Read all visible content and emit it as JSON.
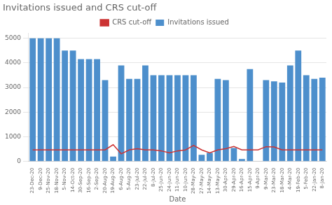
{
  "chart_data": {
    "type": "bar",
    "title": "Invitations issued and CRS cut-off",
    "x_label": "Date",
    "categories": [
      "23-Dec-20",
      "9-Dec-20",
      "25-Nov-20",
      "18-Nov-20",
      "5-Nov-20",
      "14-Oct-20",
      "30-Sep-20",
      "16-Sep-20",
      "2-Sep-20",
      "20-Aug-20",
      "19-Aug-20",
      "6-Aug-20",
      "5-Aug-20",
      "23-Jul-20",
      "22-Jul-20",
      "8-Jul-20",
      "25-Jun-20",
      "24-Jun-20",
      "11-Jun-20",
      "10-Jun-20",
      "28-May-20",
      "27-May-20",
      "14-May-20",
      "13-May-20",
      "30-Apr-20",
      "29-Apr-20",
      "16-Apr-20",
      "15-Apr-20",
      "9-Apr-20",
      "9-Mar-20",
      "23-Mar-20",
      "18-Mar-20",
      "4-Mar-20",
      "19-Feb-20",
      "5-Feb-20",
      "22-Jan-20",
      "8-Jan-20"
    ],
    "series": [
      {
        "name": "Invitations issued",
        "type": "bar",
        "color": "#4d8fcc",
        "values": [
          5000,
          5000,
          5000,
          5000,
          4500,
          4500,
          4150,
          4150,
          4150,
          3300,
          200,
          3900,
          3350,
          3350,
          3900,
          3500,
          3500,
          3500,
          3500,
          3500,
          3500,
          270,
          350,
          3350,
          3300,
          550,
          100,
          3750,
          0,
          3300,
          3250,
          3200,
          3900,
          4500,
          3500,
          3350,
          3400
        ]
      },
      {
        "name": "CRS cut-off",
        "type": "line",
        "color": "#cc3333",
        "values": [
          470,
          470,
          470,
          470,
          470,
          470,
          470,
          470,
          470,
          470,
          680,
          310,
          470,
          520,
          470,
          470,
          430,
          350,
          430,
          470,
          650,
          470,
          350,
          470,
          520,
          610,
          470,
          470,
          470,
          600,
          590,
          470,
          470,
          470,
          470,
          470,
          470
        ]
      }
    ],
    "ylim": [
      0,
      5200
    ],
    "yticks": [
      0,
      1000,
      2000,
      3000,
      4000,
      5000
    ],
    "grid": true,
    "legend": "top"
  }
}
